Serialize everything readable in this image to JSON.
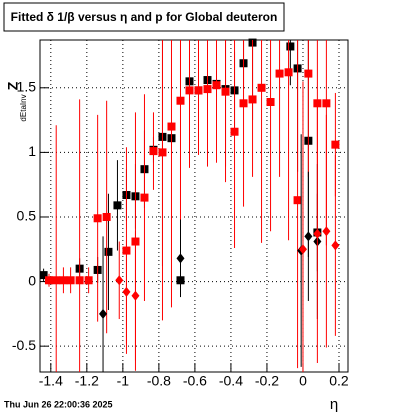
{
  "chart_data": {
    "type": "scatter",
    "title": "Fitted δ 1/β versus η and p for Global deuteron",
    "x_label": "η",
    "y_label": "Z",
    "y_label_sub": "dEtaInv",
    "footer": "Thu Jun 26 22:00:36 2025",
    "xlim": [
      -1.46,
      0.25
    ],
    "ylim": [
      -0.7,
      1.87
    ],
    "xticks": [
      -1.4,
      -1.2,
      -1,
      -0.8,
      -0.6,
      -0.4,
      -0.2,
      0,
      0.2
    ],
    "yticks": [
      -0.5,
      0,
      0.5,
      1,
      1.5
    ],
    "grid": true,
    "series": [
      {
        "color": "#000000",
        "marker": "square",
        "x": [
          -1.44,
          -1.24,
          -1.14,
          -1.08,
          -1.03,
          -0.98,
          -0.93,
          -0.88,
          -0.83,
          -0.78,
          -0.73,
          -0.68,
          -0.63,
          -0.58,
          -0.53,
          -0.48,
          -0.43,
          -0.38,
          -0.33,
          -0.28,
          -0.07,
          -0.03,
          0.03,
          0.08
        ],
        "values": [
          0.05,
          0.1,
          0.09,
          0.23,
          0.59,
          0.67,
          0.66,
          0.87,
          1.02,
          1.12,
          1.11,
          0.01,
          1.55,
          1.48,
          1.56,
          1.53,
          1.49,
          1.48,
          1.69,
          1.85,
          1.82,
          1.65,
          1.09,
          0.38
        ],
        "errors": [
          0.05,
          0.08,
          0.1,
          0.45,
          0.35,
          0.2,
          0.25,
          0.3,
          0.1,
          1.0,
          0.1,
          0.05,
          0.5,
          0.2,
          0.3,
          0.1,
          0.6,
          0.3,
          0.2,
          0.6,
          0.3,
          0.8,
          0.9,
          0.3
        ]
      },
      {
        "color": "#ff0000",
        "marker": "square",
        "x": [
          -1.41,
          -1.37,
          -1.33,
          -1.29,
          -1.24,
          -1.19,
          -1.14,
          -1.09,
          -0.98,
          -0.93,
          -0.88,
          -0.83,
          -0.78,
          -0.73,
          -0.68,
          -0.63,
          -0.58,
          -0.53,
          -0.48,
          -0.43,
          -0.38,
          -0.33,
          -0.28,
          -0.23,
          -0.18,
          -0.13,
          -0.08,
          -0.03,
          0.03,
          0.08,
          0.13,
          0.18
        ],
        "values": [
          0.01,
          0.01,
          0.01,
          0.01,
          0.01,
          0.01,
          0.49,
          0.5,
          0.24,
          0.31,
          0.65,
          1.01,
          1.0,
          1.2,
          1.4,
          1.48,
          1.48,
          1.49,
          1.52,
          1.47,
          1.16,
          1.38,
          1.41,
          1.5,
          1.39,
          1.61,
          1.62,
          0.63,
          1.61,
          1.38,
          1.38,
          1.06
        ],
        "errors": [
          0.05,
          1.2,
          0.1,
          0.1,
          1.4,
          0.1,
          0.8,
          0.9,
          0.8,
          1.0,
          0.8,
          0.3,
          1.3,
          1.4,
          1.0,
          0.6,
          0.5,
          0.6,
          0.6,
          0.7,
          0.9,
          0.8,
          0.6,
          1.2,
          1.0,
          0.8,
          1.3,
          1.3,
          0.8,
          1.0,
          1.1,
          0.4
        ]
      },
      {
        "color": "#000000",
        "marker": "diamond",
        "x": [
          -1.11,
          -0.68,
          -0.01,
          0.03,
          0.08
        ],
        "values": [
          -0.25,
          0.18,
          0.24,
          0.35,
          0.31
        ],
        "errors": [
          0.6,
          0.3,
          0.9,
          0.5,
          0.6
        ]
      },
      {
        "color": "#ff0000",
        "marker": "diamond",
        "x": [
          -1.02,
          -0.98,
          -0.93,
          0.0,
          0.08,
          0.13,
          0.18
        ],
        "values": [
          0.01,
          -0.08,
          -0.11,
          0.25,
          0.37,
          0.39,
          0.28
        ],
        "errors": [
          0.3,
          0.4,
          0.5,
          1.3,
          1.0,
          0.9,
          0.7
        ]
      }
    ]
  }
}
